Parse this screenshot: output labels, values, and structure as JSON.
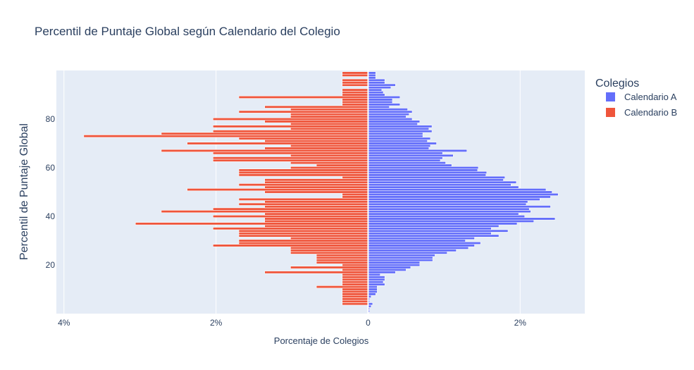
{
  "chart_data": {
    "type": "bar",
    "orientation": "horizontal",
    "title": "Percentil de Puntaje Global según Calendario del Colegio",
    "xlabel": "Porcentaje de Colegios",
    "ylabel": "Percentil de Puntaje Global",
    "xlim": [
      -4.1,
      2.85
    ],
    "ylim": [
      0,
      100
    ],
    "xticks": [
      -4,
      -2,
      0,
      2
    ],
    "xtick_labels": [
      "4%",
      "2%",
      "0",
      "2%"
    ],
    "yticks": [
      20,
      40,
      60,
      80
    ],
    "yticks_labels": [
      "20",
      "40",
      "60",
      "80"
    ],
    "grid": true,
    "legend": {
      "title": "Colegios",
      "placement": "right"
    },
    "colors": {
      "calendario_a": "#636efa",
      "calendario_b": "#ef553b",
      "plot_bg": "#e5ecf6"
    },
    "series": [
      {
        "name": "Calendario A",
        "color": "#636efa",
        "percentiles": [
          1,
          2,
          3,
          4,
          5,
          6,
          7,
          8,
          9,
          10,
          11,
          12,
          13,
          14,
          15,
          16,
          17,
          18,
          19,
          20,
          21,
          22,
          23,
          24,
          25,
          26,
          27,
          28,
          29,
          30,
          31,
          32,
          33,
          34,
          35,
          36,
          37,
          38,
          39,
          40,
          41,
          42,
          43,
          44,
          45,
          46,
          47,
          48,
          49,
          50,
          51,
          52,
          53,
          54,
          55,
          56,
          57,
          58,
          59,
          60,
          61,
          62,
          63,
          64,
          65,
          66,
          67,
          68,
          69,
          70,
          71,
          72,
          73,
          74,
          75,
          76,
          77,
          78,
          79,
          80,
          81,
          82,
          83,
          84,
          85,
          86,
          87,
          88,
          89,
          90,
          91,
          92,
          93,
          94,
          95,
          96,
          97,
          98,
          99
        ],
        "values": [
          0.02,
          0.02,
          0.04,
          0.06,
          0.02,
          0.02,
          0.04,
          0.1,
          0.12,
          0.12,
          0.12,
          0.22,
          0.2,
          0.22,
          0.22,
          0.16,
          0.36,
          0.5,
          0.56,
          0.68,
          0.68,
          0.85,
          0.85,
          0.88,
          1.04,
          1.16,
          1.32,
          1.4,
          1.48,
          1.28,
          1.4,
          1.72,
          1.62,
          1.84,
          1.62,
          1.72,
          1.96,
          2.18,
          2.46,
          2.06,
          1.98,
          2.14,
          2.12,
          2.4,
          2.08,
          2.1,
          2.26,
          2.4,
          2.5,
          2.42,
          2.34,
          1.98,
          1.88,
          1.95,
          1.78,
          1.8,
          1.55,
          1.56,
          1.44,
          1.45,
          1.1,
          1.02,
          0.95,
          0.98,
          1.12,
          0.98,
          1.3,
          0.8,
          0.82,
          0.9,
          0.78,
          0.82,
          0.72,
          0.72,
          0.84,
          0.8,
          0.84,
          0.65,
          0.68,
          0.58,
          0.5,
          0.54,
          0.58,
          0.52,
          0.28,
          0.42,
          0.32,
          0.32,
          0.42,
          0.22,
          0.2,
          0.18,
          0.3,
          0.36,
          0.22,
          0.22,
          0.1,
          0.1,
          0.1
        ]
      },
      {
        "name": "Calendario B",
        "color": "#ef553b",
        "percentiles": [
          1,
          2,
          3,
          4,
          5,
          6,
          7,
          8,
          9,
          10,
          11,
          12,
          13,
          14,
          15,
          16,
          17,
          18,
          19,
          20,
          21,
          22,
          23,
          24,
          25,
          26,
          27,
          28,
          29,
          30,
          31,
          32,
          33,
          34,
          35,
          36,
          37,
          38,
          39,
          40,
          41,
          42,
          43,
          44,
          45,
          46,
          47,
          48,
          49,
          50,
          51,
          52,
          53,
          54,
          55,
          56,
          57,
          58,
          59,
          60,
          61,
          62,
          63,
          64,
          65,
          66,
          67,
          68,
          69,
          70,
          71,
          72,
          73,
          74,
          75,
          76,
          77,
          78,
          79,
          80,
          81,
          82,
          83,
          84,
          85,
          86,
          87,
          88,
          89,
          90,
          91,
          92,
          93,
          94,
          95,
          96,
          97,
          98,
          99
        ],
        "values": [
          0,
          0,
          0,
          -0.34,
          -0.34,
          -0.34,
          -0.34,
          -0.34,
          -0.34,
          -0.34,
          -0.68,
          -0.34,
          -0.34,
          -0.34,
          -0.34,
          -0.34,
          -1.36,
          -0.34,
          -1.02,
          -0.34,
          -0.68,
          -0.68,
          -0.68,
          -0.68,
          -1.02,
          -1.02,
          -1.02,
          -2.04,
          -1.7,
          -1.7,
          -1.02,
          -1.7,
          -1.7,
          -1.7,
          -2.04,
          -1.36,
          -3.06,
          -1.36,
          -1.36,
          -2.04,
          -1.36,
          -2.72,
          -2.04,
          -1.36,
          -1.7,
          -1.36,
          -1.7,
          -0.34,
          -0.34,
          -1.36,
          -2.38,
          -1.36,
          -1.7,
          -1.36,
          -1.36,
          -0.34,
          -1.7,
          -1.7,
          -1.7,
          -1.02,
          -0.68,
          -1.02,
          -2.04,
          -2.04,
          -1.02,
          -2.04,
          -2.72,
          -1.36,
          -1.02,
          -2.38,
          -1.36,
          -1.7,
          -3.74,
          -2.72,
          -2.04,
          -1.02,
          -2.04,
          -1.02,
          -1.36,
          -2.04,
          -1.02,
          -1.02,
          -1.7,
          -1.02,
          -1.36,
          -0.34,
          -0.34,
          -0.34,
          -1.7,
          -0.34,
          -0.34,
          -0.34,
          0,
          -0.34,
          -0.34,
          -0.34,
          0,
          -0.34,
          -0.34
        ]
      }
    ]
  }
}
